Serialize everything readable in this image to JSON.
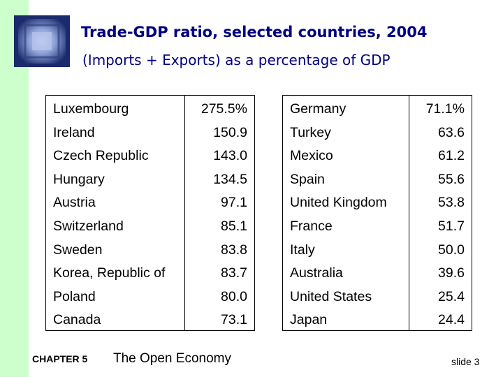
{
  "slide": {
    "title": "Trade-GDP ratio, selected countries, 2004",
    "subtitle": "(Imports + Exports) as a percentage of GDP"
  },
  "table_left": [
    {
      "country": "Luxembourg",
      "value": "275.5%"
    },
    {
      "country": "Ireland",
      "value": "150.9"
    },
    {
      "country": "Czech Republic",
      "value": "143.0"
    },
    {
      "country": "Hungary",
      "value": "134.5"
    },
    {
      "country": "Austria",
      "value": "97.1"
    },
    {
      "country": "Switzerland",
      "value": "85.1"
    },
    {
      "country": "Sweden",
      "value": "83.8"
    },
    {
      "country": "Korea, Republic of",
      "value": "83.7"
    },
    {
      "country": "Poland",
      "value": "80.0"
    },
    {
      "country": "Canada",
      "value": "73.1"
    }
  ],
  "table_right": [
    {
      "country": "Germany",
      "value": "71.1%"
    },
    {
      "country": "Turkey",
      "value": "63.6"
    },
    {
      "country": "Mexico",
      "value": "61.2"
    },
    {
      "country": "Spain",
      "value": "55.6"
    },
    {
      "country": "United Kingdom",
      "value": "53.8"
    },
    {
      "country": "France",
      "value": "51.7"
    },
    {
      "country": "Italy",
      "value": "50.0"
    },
    {
      "country": "Australia",
      "value": "39.6"
    },
    {
      "country": "United States",
      "value": "25.4"
    },
    {
      "country": "Japan",
      "value": "24.4"
    }
  ],
  "footer": {
    "chapter": "CHAPTER 5",
    "book_title": "The Open Economy",
    "slide_number": "slide 3"
  },
  "colors": {
    "title": "#000080",
    "side_bar": "#ccffcc",
    "logo_dark": "#1a2a6c",
    "logo_light": "#8fa3d8"
  }
}
